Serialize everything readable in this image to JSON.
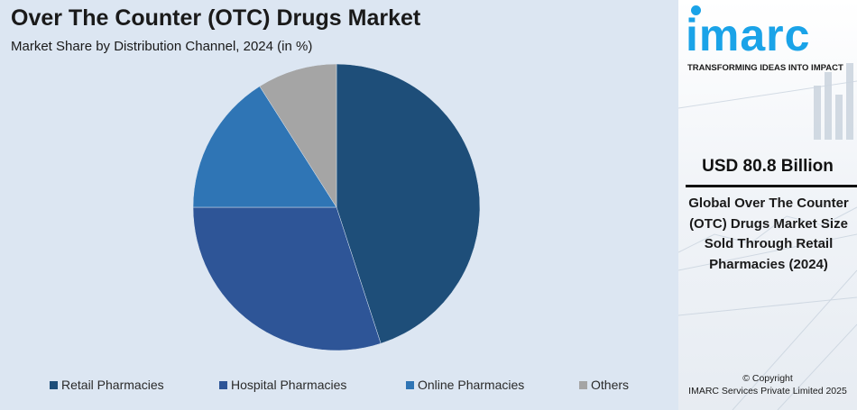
{
  "header": {
    "title": "Over The Counter (OTC) Drugs Market",
    "subtitle": "Market Share by Distribution Channel, 2024 (in %)"
  },
  "chart_data": {
    "type": "pie",
    "categories": [
      "Retail Pharmacies",
      "Hospital Pharmacies",
      "Online Pharmacies",
      "Others"
    ],
    "values": [
      45,
      30,
      16,
      9
    ],
    "colors": [
      "#1e4e79",
      "#2e5597",
      "#2f75b5",
      "#a5a5a5"
    ],
    "title": "",
    "legend_position": "bottom"
  },
  "brand": {
    "logo_text": "imarc",
    "tagline": "TRANSFORMING IDEAS INTO IMPACT",
    "accent": "#1aa3e8"
  },
  "highlight": {
    "value": "USD 80.8 Billion",
    "description": "Global Over The Counter (OTC) Drugs Market Size Sold Through Retail Pharmacies (2024)"
  },
  "footer": {
    "copyright_line1": "© Copyright",
    "copyright_line2": "IMARC Services Private Limited 2025"
  }
}
